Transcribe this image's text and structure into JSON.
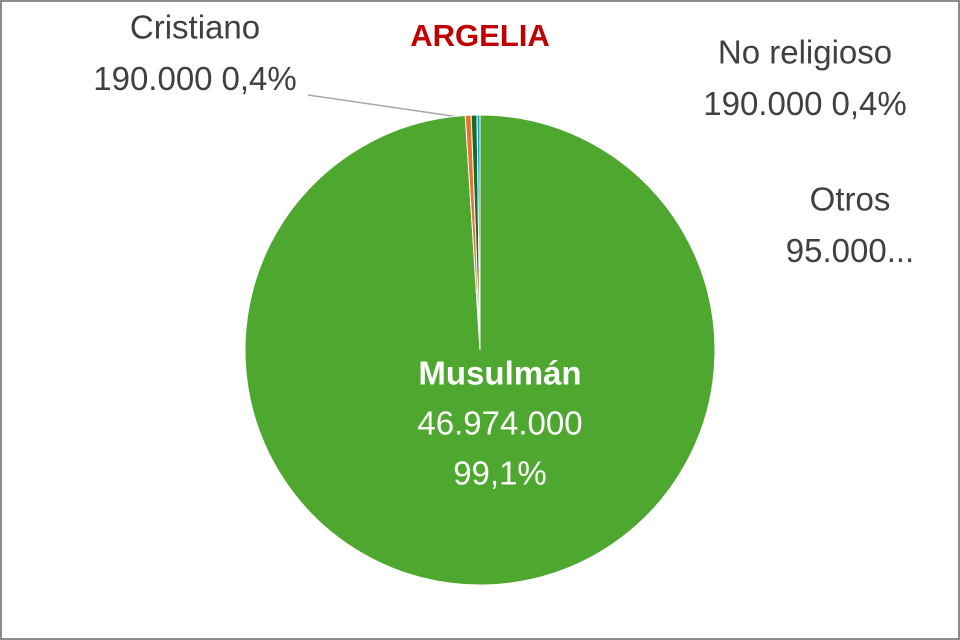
{
  "chart_data": {
    "type": "pie",
    "title": "ARGELIA",
    "categories": [
      "Musulmán",
      "Cristiano",
      "No religioso",
      "Otros"
    ],
    "values": [
      46974000,
      190000,
      190000,
      95000
    ],
    "value_labels": [
      "46.974.000",
      "190.000",
      "190.000",
      "95.000..."
    ],
    "percent_labels": [
      "99,1%",
      "0,4%",
      "0,4%",
      null
    ],
    "colors": [
      "#4ea72e",
      "#e97132",
      "#196b24",
      "#0f9ed5"
    ]
  }
}
